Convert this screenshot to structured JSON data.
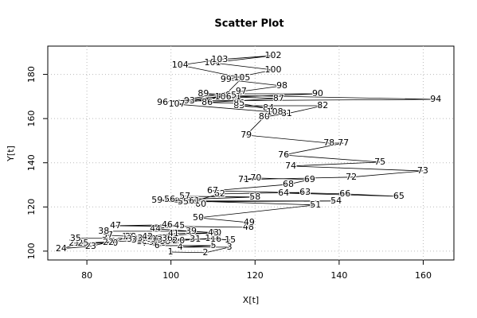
{
  "chart_data": {
    "type": "scatter",
    "title": "Scatter Plot",
    "x_label": "X[t]",
    "y_label": "Y[t]",
    "x": [
      99.9,
      108.2,
      113.9,
      102.2,
      110.1,
      96.7,
      93.8,
      98.2,
      95.3,
      102.0,
      93.1,
      100.3,
      98.6,
      109.4,
      114.1,
      110.7,
      92.5,
      89.7,
      86.3,
      86.1,
      77.0,
      85.1,
      80.9,
      73.9,
      79.1,
      93.8,
      94.6,
      90.4,
      95.2,
      90.8,
      105.8,
      98.0,
      91.9,
      93.3,
      77.3,
      99.1,
      84.9,
      84.0,
      104.8,
      110.7,
      100.6,
      94.4,
      110.1,
      96.3,
      102.0,
      99.1,
      86.8,
      118.4,
      118.6,
      106.5,
      134.4,
      103.9,
      104.8,
      139.3,
      102.9,
      99.7,
      103.3,
      120.0,
      96.7,
      107.1,
      105.6,
      111.6,
      131.9,
      126.8,
      154.2,
      141.4,
      109.9,
      127.9,
      133.0,
      120.2,
      117.3,
      142.9,
      159.9,
      128.5,
      149.7,
      126.8,
      141.0,
      137.6,
      117.9,
      122.2,
      127.5,
      136.1,
      116.2,
      123.2,
      116.2,
      108.6,
      125.6,
      114.3,
      107.7,
      134.9,
      115.4,
      113.3,
      104.4,
      163.0,
      114.3,
      98.0,
      116.7,
      126.4,
      113.1,
      124.3,
      109.9,
      124.3,
      111.6,
      102.2,
      116.9,
      112.4,
      101.4,
      124.7
    ],
    "y": [
      99.6,
      99.3,
      101.8,
      101.8,
      102.5,
      102.5,
      103.6,
      103.6,
      104.0,
      104.7,
      104.3,
      104.7,
      104.3,
      105.8,
      105.0,
      105.4,
      105.4,
      106.5,
      104.0,
      103.6,
      103.6,
      104.0,
      102.2,
      101.1,
      103.6,
      105.0,
      105.8,
      106.5,
      105.4,
      105.4,
      105.4,
      105.0,
      105.0,
      105.8,
      105.8,
      105.8,
      107.2,
      109.0,
      109.0,
      108.3,
      107.9,
      106.5,
      108.3,
      110.1,
      111.5,
      111.9,
      111.5,
      110.8,
      112.9,
      115.1,
      120.9,
      122.7,
      122.7,
      122.7,
      122.3,
      123.4,
      124.8,
      124.5,
      123.0,
      121.2,
      122.7,
      125.9,
      126.6,
      126.3,
      124.8,
      125.9,
      127.3,
      130.2,
      132.4,
      133.1,
      132.4,
      133.5,
      136.3,
      138.5,
      140.3,
      143.5,
      148.9,
      148.9,
      152.5,
      160.8,
      162.2,
      165.8,
      165.8,
      164.7,
      166.9,
      167.3,
      169.1,
      169.8,
      171.2,
      171.2,
      169.8,
      170.1,
      168.0,
      168.7,
      170.5,
      167.3,
      172.3,
      174.8,
      177.7,
      182.0,
      185.3,
      188.5,
      186.7,
      184.2,
      178.4,
      169.8,
      166.5,
      162.9
    ],
    "labels": [
      1,
      2,
      3,
      4,
      5,
      6,
      7,
      8,
      9,
      10,
      11,
      12,
      13,
      14,
      15,
      16,
      17,
      18,
      19,
      20,
      21,
      22,
      23,
      24,
      25,
      26,
      27,
      28,
      29,
      30,
      31,
      32,
      33,
      34,
      35,
      36,
      37,
      38,
      39,
      40,
      41,
      42,
      43,
      44,
      45,
      46,
      47,
      48,
      49,
      50,
      51,
      52,
      53,
      54,
      55,
      56,
      57,
      58,
      59,
      60,
      61,
      62,
      63,
      64,
      65,
      66,
      67,
      68,
      69,
      70,
      71,
      72,
      73,
      74,
      75,
      76,
      77,
      78,
      79,
      80,
      81,
      82,
      83,
      84,
      85,
      86,
      87,
      88,
      89,
      90,
      91,
      92,
      93,
      94,
      95,
      96,
      97,
      98,
      99,
      100,
      101,
      102,
      103,
      104,
      105,
      106,
      107,
      108
    ],
    "color": "#000000",
    "xlim": [
      70.7,
      167.3
    ],
    "ylim": [
      96.0,
      192.8
    ],
    "xticks": [
      80,
      100,
      120,
      140,
      160
    ],
    "yticks": [
      100,
      120,
      140,
      160,
      180
    ],
    "grid": true
  }
}
